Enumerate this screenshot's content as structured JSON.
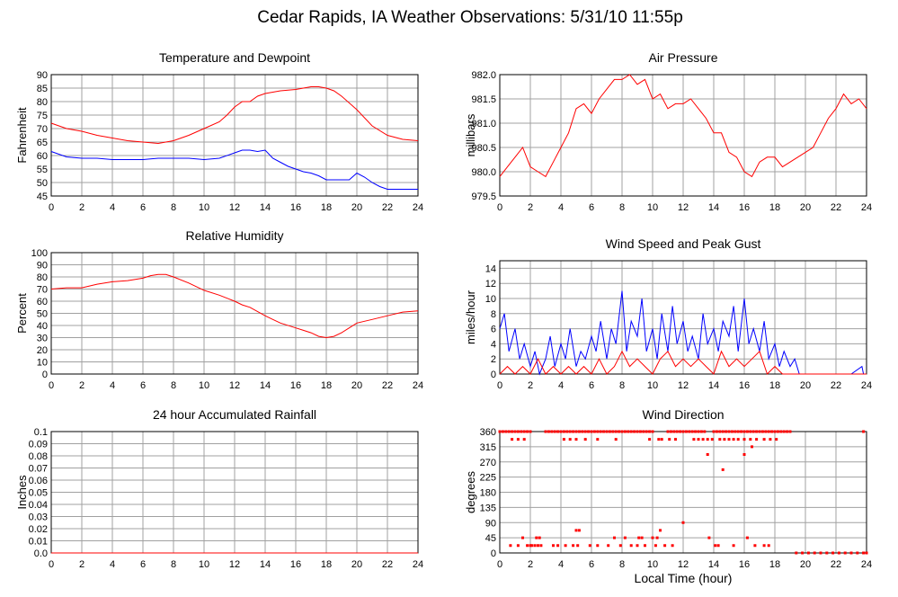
{
  "title": "Cedar Rapids, IA Weather Observations: 5/31/10 11:55p",
  "xlabel": "Local Time (hour)",
  "colors": {
    "red": "#ff0000",
    "blue": "#0000ff",
    "grid": "#a0a0a0",
    "axis": "#000000"
  },
  "chart_data": [
    {
      "type": "line",
      "title": "Temperature and Dewpoint",
      "xlabel": "",
      "ylabel": "Fahrenheit",
      "xlim": [
        0,
        24
      ],
      "ylim": [
        45,
        90
      ],
      "xticks": [
        "0",
        "2",
        "4",
        "6",
        "8",
        "10",
        "12",
        "14",
        "16",
        "18",
        "20",
        "22",
        "24"
      ],
      "yticks": [
        "45",
        "50",
        "55",
        "60",
        "65",
        "70",
        "75",
        "80",
        "85",
        "90"
      ],
      "grid": true,
      "series": [
        {
          "color": "#ff0000",
          "x": [
            0,
            1,
            2,
            3,
            4,
            5,
            6,
            7,
            7.5,
            8,
            9,
            10,
            11,
            11.5,
            12,
            12.5,
            13,
            13.5,
            14,
            15,
            16,
            16.5,
            17,
            17.5,
            18,
            18.5,
            19,
            20,
            21,
            22,
            23,
            24
          ],
          "y": [
            72,
            70,
            69,
            67.5,
            66.5,
            65.5,
            65,
            64.5,
            65,
            65.5,
            67.5,
            70,
            72.5,
            75,
            78,
            80,
            80,
            82,
            83,
            84,
            84.5,
            85,
            85.5,
            85.5,
            85,
            84,
            82,
            77,
            71,
            67.5,
            66,
            65.5
          ]
        },
        {
          "color": "#0000ff",
          "x": [
            0,
            1,
            2,
            3,
            4,
            5,
            6,
            7,
            8,
            9,
            10,
            11,
            12,
            12.5,
            13,
            13.5,
            14,
            14.5,
            15,
            15.5,
            16,
            16.5,
            17,
            17.5,
            18,
            18.5,
            19,
            19.5,
            20,
            20.5,
            21,
            21.5,
            22,
            23,
            24
          ],
          "y": [
            61.5,
            59.5,
            59,
            59,
            58.5,
            58.5,
            58.5,
            59,
            59,
            59,
            58.5,
            59,
            61,
            62,
            62,
            61.5,
            62,
            59,
            57.5,
            56,
            55,
            54,
            53.5,
            52.5,
            51,
            51,
            51,
            51,
            53.5,
            52,
            50,
            48.5,
            47.5,
            47.5,
            47.5
          ]
        }
      ]
    },
    {
      "type": "line",
      "title": "Air Pressure",
      "xlabel": "",
      "ylabel": "millibars",
      "xlim": [
        0,
        24
      ],
      "ylim": [
        979.5,
        982.0
      ],
      "xticks": [
        "0",
        "2",
        "4",
        "6",
        "8",
        "10",
        "12",
        "14",
        "16",
        "18",
        "20",
        "22",
        "24"
      ],
      "yticks": [
        "979.5",
        "980.0",
        "980.5",
        "981.0",
        "981.5",
        "982.0"
      ],
      "grid": true,
      "series": [
        {
          "color": "#ff0000",
          "x": [
            0,
            0.5,
            1,
            1.5,
            2,
            2.5,
            3,
            3.5,
            4,
            4.5,
            5,
            5.5,
            6,
            6.5,
            7,
            7.5,
            8,
            8.5,
            9,
            9.5,
            10,
            10.5,
            11,
            11.5,
            12,
            12.5,
            13,
            13.5,
            14,
            14.5,
            15,
            15.5,
            16,
            16.5,
            17,
            17.5,
            18,
            18.5,
            19,
            19.5,
            20,
            20.5,
            21,
            21.5,
            22,
            22.5,
            23,
            23.5,
            24
          ],
          "y": [
            979.9,
            980.1,
            980.3,
            980.5,
            980.1,
            980.0,
            979.9,
            980.2,
            980.5,
            980.8,
            981.3,
            981.4,
            981.2,
            981.5,
            981.7,
            981.9,
            981.9,
            982.0,
            981.8,
            981.9,
            981.5,
            981.6,
            981.3,
            981.4,
            981.4,
            981.5,
            981.3,
            981.1,
            980.8,
            980.8,
            980.4,
            980.3,
            980.0,
            979.9,
            980.2,
            980.3,
            980.3,
            980.1,
            980.2,
            980.3,
            980.4,
            980.5,
            980.8,
            981.1,
            981.3,
            981.6,
            981.4,
            981.5,
            981.3
          ]
        }
      ]
    },
    {
      "type": "line",
      "title": "Relative Humidity",
      "xlabel": "",
      "ylabel": "Percent",
      "xlim": [
        0,
        24
      ],
      "ylim": [
        0,
        100
      ],
      "xticks": [
        "0",
        "2",
        "4",
        "6",
        "8",
        "10",
        "12",
        "14",
        "16",
        "18",
        "20",
        "22",
        "24"
      ],
      "yticks": [
        "0",
        "10",
        "20",
        "30",
        "40",
        "50",
        "60",
        "70",
        "80",
        "90",
        "100"
      ],
      "grid": true,
      "series": [
        {
          "color": "#ff0000",
          "x": [
            0,
            1,
            2,
            3,
            4,
            5,
            6,
            6.5,
            7,
            7.5,
            8,
            9,
            10,
            11,
            12,
            12.5,
            13,
            14,
            14.5,
            15,
            16,
            16.5,
            17,
            17.5,
            18,
            18.5,
            19,
            19.5,
            20,
            21,
            22,
            23,
            24
          ],
          "y": [
            70,
            71,
            71,
            74,
            76,
            77,
            79,
            81,
            82,
            82,
            80,
            75,
            69,
            65,
            60,
            57,
            55,
            48,
            45,
            42,
            38,
            36,
            34,
            31,
            30,
            31,
            34,
            38,
            42,
            45,
            48,
            51,
            52
          ]
        }
      ]
    },
    {
      "type": "line",
      "title": "Wind Speed and Peak Gust",
      "xlabel": "",
      "ylabel": "miles/hour",
      "xlim": [
        0,
        24
      ],
      "ylim": [
        0,
        15
      ],
      "xticks": [
        "0",
        "2",
        "4",
        "6",
        "8",
        "10",
        "12",
        "14",
        "16",
        "18",
        "20",
        "22",
        "24"
      ],
      "yticks": [
        "0",
        "2",
        "4",
        "6",
        "8",
        "10",
        "12",
        "14"
      ],
      "grid": true,
      "series": [
        {
          "color": "#0000ff",
          "x": [
            0,
            0.3,
            0.6,
            1,
            1.3,
            1.6,
            2,
            2.3,
            2.6,
            3,
            3.3,
            3.6,
            4,
            4.3,
            4.6,
            5,
            5.3,
            5.6,
            6,
            6.3,
            6.6,
            7,
            7.3,
            7.6,
            8,
            8.3,
            8.6,
            9,
            9.3,
            9.6,
            10,
            10.3,
            10.6,
            11,
            11.3,
            11.6,
            12,
            12.3,
            12.6,
            13,
            13.3,
            13.6,
            14,
            14.3,
            14.6,
            15,
            15.3,
            15.6,
            16,
            16.3,
            16.6,
            17,
            17.3,
            17.6,
            18,
            18.3,
            18.6,
            19,
            19.3,
            19.6,
            20,
            21,
            22,
            23,
            23.7,
            23.8,
            24
          ],
          "y": [
            6,
            8,
            3,
            6,
            2,
            4,
            1,
            3,
            0,
            2,
            5,
            1,
            4,
            2,
            6,
            1,
            3,
            2,
            5,
            3,
            7,
            2,
            6,
            4,
            11,
            3,
            7,
            5,
            10,
            3,
            6,
            2,
            8,
            3,
            9,
            4,
            7,
            3,
            5,
            2,
            8,
            4,
            6,
            3,
            7,
            5,
            9,
            3,
            10,
            4,
            6,
            3,
            7,
            2,
            4,
            1,
            3,
            1,
            2,
            0,
            0,
            0,
            0,
            0,
            1,
            0,
            0
          ]
        },
        {
          "color": "#ff0000",
          "x": [
            0,
            0.5,
            1,
            1.5,
            2,
            2.5,
            3,
            3.5,
            4,
            4.5,
            5,
            5.5,
            6,
            6.5,
            7,
            7.5,
            8,
            8.5,
            9,
            9.5,
            10,
            10.5,
            11,
            11.5,
            12,
            12.5,
            13,
            13.5,
            14,
            14.5,
            15,
            15.5,
            16,
            16.5,
            17,
            17.5,
            18,
            18.5,
            19,
            19.5,
            20,
            21,
            22,
            23,
            24
          ],
          "y": [
            0,
            1,
            0,
            1,
            0,
            2,
            0,
            1,
            0,
            1,
            0,
            1,
            0,
            2,
            0,
            1,
            3,
            1,
            2,
            1,
            0,
            2,
            3,
            1,
            2,
            1,
            2,
            1,
            0,
            3,
            1,
            2,
            1,
            2,
            3,
            0,
            1,
            0,
            0,
            0,
            0,
            0,
            0,
            0,
            0
          ]
        }
      ]
    },
    {
      "type": "line",
      "title": "24 hour Accumulated Rainfall",
      "xlabel": "",
      "ylabel": "Inches",
      "xlim": [
        0,
        24
      ],
      "ylim": [
        0,
        0.1
      ],
      "xticks": [
        "0",
        "2",
        "4",
        "6",
        "8",
        "10",
        "12",
        "14",
        "16",
        "18",
        "20",
        "22",
        "24"
      ],
      "yticks": [
        "0.0",
        "0.01",
        "0.02",
        "0.03",
        "0.04",
        "0.05",
        "0.06",
        "0.07",
        "0.08",
        "0.09",
        "0.1"
      ],
      "grid": true,
      "series": [
        {
          "color": "#ff0000",
          "x": [
            0,
            24
          ],
          "y": [
            0,
            0
          ]
        }
      ]
    },
    {
      "type": "scatter",
      "title": "Wind Direction",
      "xlabel": "Local Time (hour)",
      "ylabel": "degrees",
      "xlim": [
        0,
        24
      ],
      "ylim": [
        0,
        360
      ],
      "xticks": [
        "0",
        "2",
        "4",
        "6",
        "8",
        "10",
        "12",
        "14",
        "16",
        "18",
        "20",
        "22",
        "24"
      ],
      "yticks": [
        "0",
        "45",
        "90",
        "135",
        "180",
        "225",
        "270",
        "315",
        "360"
      ],
      "grid": true,
      "series": [
        {
          "color": "#ff0000",
          "x": [
            0,
            0.2,
            0.4,
            0.6,
            0.8,
            1.0,
            1.2,
            1.4,
            1.6,
            1.8,
            2.0,
            3.0,
            3.2,
            3.4,
            3.6,
            3.8,
            4.0,
            4.2,
            4.4,
            4.6,
            4.8,
            5.0,
            5.2,
            5.4,
            5.6,
            5.8,
            6.0,
            6.2,
            6.4,
            6.6,
            6.8,
            7.0,
            7.2,
            7.4,
            7.6,
            7.8,
            8.0,
            8.2,
            8.4,
            8.6,
            8.8,
            9.0,
            9.2,
            9.4,
            9.6,
            9.8,
            10.0,
            11.0,
            11.2,
            11.4,
            11.6,
            11.8,
            12.0,
            12.2,
            12.4,
            12.6,
            12.8,
            13.0,
            13.2,
            13.4,
            14.0,
            14.2,
            14.4,
            14.6,
            14.8,
            15.0,
            15.2,
            15.4,
            15.6,
            15.8,
            16.0,
            16.2,
            16.4,
            16.6,
            16.8,
            17.0,
            17.2,
            17.4,
            17.6,
            17.8,
            18.0,
            18.2,
            18.4,
            18.6,
            18.8,
            19.0,
            23.8,
            0.8,
            1.2,
            1.6,
            4.2,
            4.6,
            5.0,
            5.6,
            6.4,
            7.6,
            9.8,
            10.4,
            10.6,
            11.1,
            11.5,
            12.7,
            13.0,
            13.3,
            13.6,
            13.9,
            14.4,
            14.7,
            15.0,
            15.3,
            15.6,
            16.0,
            16.4,
            16.8,
            17.3,
            17.7,
            18.1,
            14.6,
            13.6,
            16.0,
            16.5,
            0.7,
            1.2,
            1.8,
            2.0,
            2.1,
            2.3,
            2.5,
            2.7,
            3.5,
            3.8,
            4.3,
            4.8,
            5.1,
            5.9,
            6.4,
            7.1,
            7.9,
            8.6,
            9.0,
            9.5,
            10.2,
            10.8,
            11.3,
            14.1,
            14.3,
            15.3,
            16.7,
            17.3,
            17.6,
            1.5,
            2.4,
            2.6,
            7.5,
            8.2,
            9.1,
            9.3,
            10.0,
            10.3,
            13.7,
            16.2,
            5.0,
            5.2,
            10.5,
            12.0,
            19.4,
            19.8,
            20.2,
            20.6,
            21.0,
            21.4,
            21.8,
            22.2,
            22.6,
            23.0,
            23.4,
            23.8,
            24.0
          ],
          "y": [
            360,
            360,
            360,
            360,
            360,
            360,
            360,
            360,
            360,
            360,
            360,
            360,
            360,
            360,
            360,
            360,
            360,
            360,
            360,
            360,
            360,
            360,
            360,
            360,
            360,
            360,
            360,
            360,
            360,
            360,
            360,
            360,
            360,
            360,
            360,
            360,
            360,
            360,
            360,
            360,
            360,
            360,
            360,
            360,
            360,
            360,
            360,
            360,
            360,
            360,
            360,
            360,
            360,
            360,
            360,
            360,
            360,
            360,
            360,
            360,
            360,
            360,
            360,
            360,
            360,
            360,
            360,
            360,
            360,
            360,
            360,
            360,
            360,
            360,
            360,
            360,
            360,
            360,
            360,
            360,
            360,
            360,
            360,
            360,
            360,
            360,
            360,
            337,
            337,
            337,
            337,
            337,
            337,
            337,
            337,
            337,
            337,
            337,
            337,
            337,
            337,
            337,
            337,
            337,
            337,
            337,
            337,
            337,
            337,
            337,
            337,
            337,
            337,
            337,
            337,
            337,
            337,
            247,
            292,
            292,
            315,
            22,
            22,
            22,
            22,
            22,
            22,
            22,
            22,
            22,
            22,
            22,
            22,
            22,
            22,
            22,
            22,
            22,
            22,
            22,
            22,
            22,
            22,
            22,
            22,
            22,
            22,
            22,
            22,
            22,
            45,
            45,
            45,
            45,
            45,
            45,
            45,
            45,
            45,
            45,
            45,
            67,
            67,
            67,
            90,
            0,
            0,
            0,
            0,
            0,
            0,
            0,
            0,
            0,
            0,
            0,
            0,
            0
          ]
        }
      ]
    }
  ]
}
